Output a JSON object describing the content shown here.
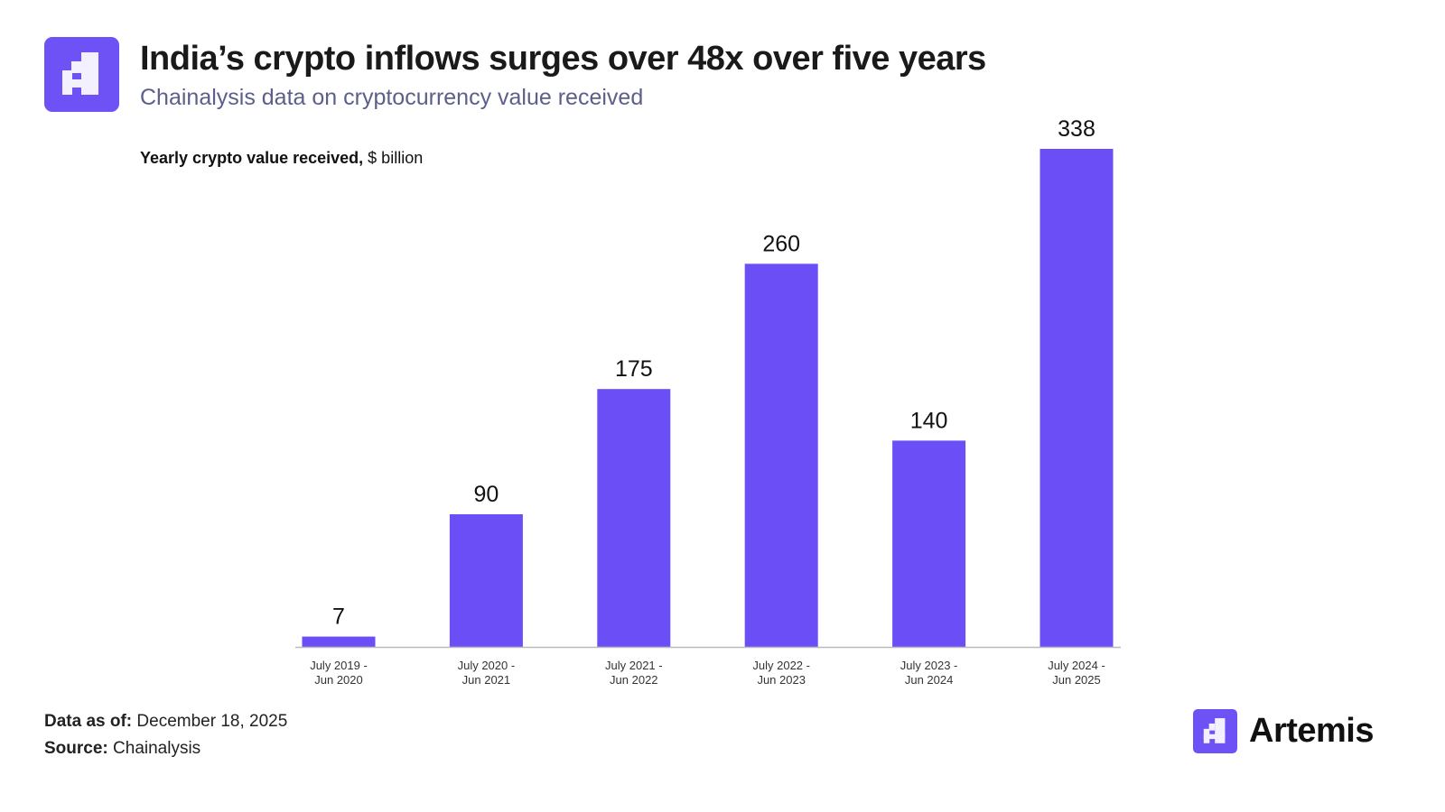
{
  "header": {
    "title": "India’s crypto inflows surges over 48x over five years",
    "subtitle": "Chainalysis data on cryptocurrency value received",
    "logo_icon": "artemis-logo-icon"
  },
  "colors": {
    "bar": "#6b4ef6",
    "logo": "#6f52f5",
    "subtitle": "#5b5f8a"
  },
  "chart_data": {
    "type": "bar",
    "ylabel_bold": "Yearly crypto value received,",
    "ylabel_unit": "$ billion",
    "categories": [
      [
        "July 2019 -",
        "Jun 2020"
      ],
      [
        "July 2020 -",
        "Jun 2021"
      ],
      [
        "July 2021 -",
        "Jun 2022"
      ],
      [
        "July 2022 -",
        "Jun 2023"
      ],
      [
        "July 2023 -",
        "Jun 2024"
      ],
      [
        "July 2024 -",
        "Jun 2025"
      ]
    ],
    "values": [
      7,
      90,
      175,
      260,
      140,
      338
    ],
    "ylim": [
      0,
      338
    ],
    "grid": false
  },
  "footer": {
    "data_as_of_label": "Data as of:",
    "data_as_of_value": "December 18, 2025",
    "source_label": "Source:",
    "source_value": "Chainalysis"
  },
  "brand": {
    "name": "Artemis"
  }
}
